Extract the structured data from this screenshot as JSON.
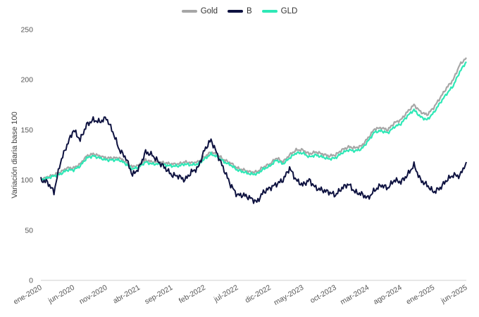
{
  "chart_data": {
    "type": "line",
    "ylabel": "Variación diaria base 100",
    "ylim": [
      0,
      250
    ],
    "yticks": [
      0,
      50,
      100,
      150,
      200,
      250
    ],
    "xlim": [
      "2020-01",
      "2025-06"
    ],
    "xticks": [
      "ene-2020",
      "jun-2020",
      "nov-2020",
      "abr-2021",
      "sep-2021",
      "feb-2022",
      "jul-2022",
      "dic-2022",
      "may-2023",
      "oct-2023",
      "mar-2024",
      "ago-2024",
      "ene-2025",
      "jun-2025"
    ],
    "legend_position": "top-center",
    "grid": false,
    "x": [
      "2020-01",
      "2020-02",
      "2020-03",
      "2020-04",
      "2020-05",
      "2020-06",
      "2020-07",
      "2020-08",
      "2020-09",
      "2020-10",
      "2020-11",
      "2020-12",
      "2021-01",
      "2021-02",
      "2021-03",
      "2021-04",
      "2021-05",
      "2021-06",
      "2021-07",
      "2021-08",
      "2021-09",
      "2021-10",
      "2021-11",
      "2021-12",
      "2022-01",
      "2022-02",
      "2022-03",
      "2022-04",
      "2022-05",
      "2022-06",
      "2022-07",
      "2022-08",
      "2022-09",
      "2022-10",
      "2022-11",
      "2022-12",
      "2023-01",
      "2023-02",
      "2023-03",
      "2023-04",
      "2023-05",
      "2023-06",
      "2023-07",
      "2023-08",
      "2023-09",
      "2023-10",
      "2023-11",
      "2023-12",
      "2024-01",
      "2024-02",
      "2024-03",
      "2024-04",
      "2024-05",
      "2024-06",
      "2024-07",
      "2024-08",
      "2024-09",
      "2024-10",
      "2024-11",
      "2024-12",
      "2025-01",
      "2025-02",
      "2025-03",
      "2025-04",
      "2025-05",
      "2025-06"
    ],
    "series": [
      {
        "name": "Gold",
        "color": "#a6a6a6",
        "values": [
          100,
          103,
          105,
          108,
          112,
          112,
          116,
          124,
          126,
          124,
          122,
          122,
          122,
          118,
          113,
          115,
          120,
          118,
          118,
          117,
          116,
          116,
          118,
          117,
          118,
          123,
          128,
          125,
          120,
          117,
          112,
          110,
          108,
          108,
          113,
          116,
          122,
          118,
          125,
          130,
          130,
          126,
          128,
          126,
          124,
          125,
          130,
          133,
          132,
          134,
          142,
          151,
          152,
          150,
          157,
          160,
          168,
          175,
          168,
          165,
          172,
          182,
          192,
          200,
          215,
          222
        ]
      },
      {
        "name": "B",
        "color": "#0e1240",
        "values": [
          100,
          98,
          88,
          118,
          135,
          150,
          140,
          155,
          160,
          158,
          162,
          148,
          130,
          122,
          105,
          112,
          128,
          125,
          118,
          112,
          105,
          104,
          100,
          108,
          112,
          130,
          140,
          125,
          110,
          95,
          85,
          85,
          82,
          78,
          88,
          92,
          96,
          100,
          112,
          100,
          95,
          100,
          92,
          90,
          88,
          85,
          92,
          96,
          88,
          86,
          82,
          90,
          95,
          92,
          100,
          98,
          105,
          115,
          100,
          95,
          88,
          92,
          100,
          105,
          104,
          118
        ]
      },
      {
        "name": "GLD",
        "color": "#2ee8b6",
        "values": [
          100,
          102,
          104,
          106,
          110,
          110,
          114,
          122,
          124,
          122,
          120,
          120,
          120,
          116,
          111,
          113,
          118,
          116,
          116,
          115,
          114,
          114,
          116,
          115,
          116,
          121,
          126,
          123,
          118,
          115,
          110,
          108,
          106,
          106,
          111,
          114,
          120,
          116,
          122,
          127,
          127,
          123,
          125,
          123,
          121,
          122,
          127,
          130,
          129,
          131,
          139,
          148,
          149,
          147,
          153,
          156,
          164,
          170,
          163,
          160,
          167,
          177,
          186,
          194,
          208,
          218
        ]
      }
    ]
  }
}
